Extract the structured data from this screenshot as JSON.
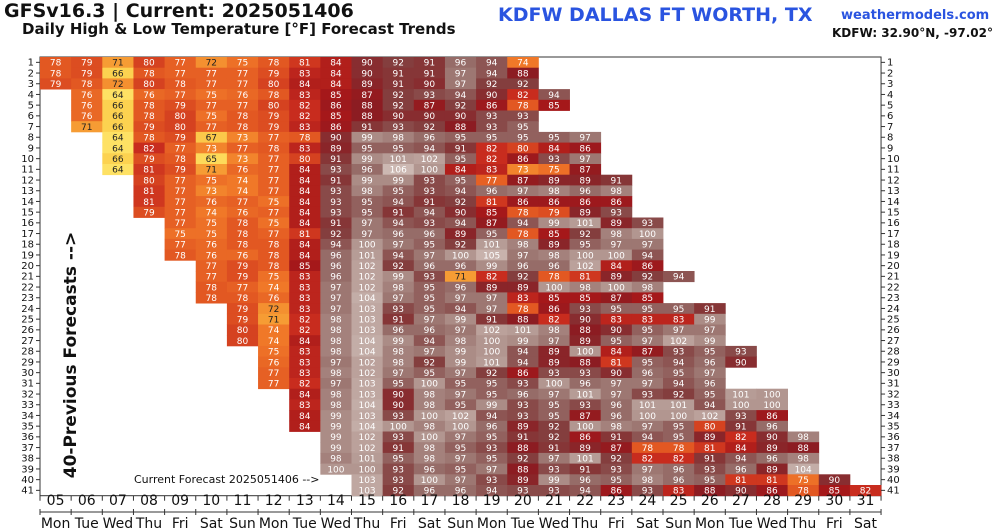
{
  "header": {
    "model_current": "GFSv16.3 | Current: 2025051406",
    "subtitle": "Daily High & Low Temperature [°F] Forecast Trends",
    "station": "KDFW DALLAS FT WORTH, TX",
    "site": "weathermodels.com",
    "coords": "KDFW: 32.90°N, -97.02°W"
  },
  "chart_data": {
    "type": "heatmap",
    "ylabel": "40-Previous Forecasts -->",
    "annotation": "Current Forecast 2025051406 -->",
    "row_labels": [
      1,
      2,
      3,
      4,
      5,
      6,
      7,
      8,
      9,
      10,
      11,
      12,
      13,
      14,
      15,
      16,
      17,
      18,
      19,
      20,
      21,
      22,
      23,
      24,
      25,
      26,
      27,
      28,
      29,
      30,
      31,
      32,
      33,
      34,
      35,
      36,
      37,
      38,
      39,
      40,
      41
    ],
    "day_numbers": [
      "05",
      "06",
      "07",
      "08",
      "09",
      "10",
      "11",
      "12",
      "13",
      "14",
      "15",
      "16",
      "17",
      "18",
      "19",
      "20",
      "21",
      "22",
      "23",
      "24",
      "25",
      "26",
      "27",
      "28",
      "29",
      "30",
      "31"
    ],
    "weekdays": [
      "Mon",
      "Tue",
      "Wed",
      "Thu",
      "Fri",
      "Sat",
      "Sun",
      "Mon",
      "Tue",
      "Wed",
      "Thu",
      "Fri",
      "Sat",
      "Sun",
      "Mon",
      "Tue",
      "Wed",
      "Thu",
      "Fri",
      "Sat",
      "Sun",
      "Mon",
      "Tue",
      "Wed",
      "Thu",
      "Fri",
      "Sat"
    ],
    "rows": [
      {
        "start": 0,
        "values": [
          78,
          79,
          71,
          80,
          77,
          72,
          75,
          78,
          81,
          84,
          90,
          92,
          91,
          96,
          94,
          74
        ]
      },
      {
        "start": 0,
        "values": [
          78,
          79,
          66,
          78,
          77,
          77,
          77,
          79,
          83,
          84,
          90,
          91,
          91,
          97,
          94,
          88
        ]
      },
      {
        "start": 0,
        "values": [
          79,
          78,
          72,
          80,
          78,
          77,
          77,
          80,
          84,
          84,
          89,
          91,
          90,
          97,
          92,
          92
        ]
      },
      {
        "start": 1,
        "values": [
          76,
          64,
          76,
          77,
          75,
          76,
          78,
          83,
          85,
          87,
          92,
          93,
          94,
          90,
          82,
          94
        ]
      },
      {
        "start": 1,
        "values": [
          76,
          66,
          78,
          79,
          77,
          77,
          80,
          82,
          86,
          88,
          92,
          87,
          92,
          86,
          78,
          85
        ]
      },
      {
        "start": 1,
        "values": [
          76,
          66,
          78,
          80,
          75,
          78,
          79,
          82,
          85,
          88,
          90,
          90,
          90,
          93,
          93
        ]
      },
      {
        "start": 1,
        "values": [
          71,
          66,
          79,
          80,
          77,
          78,
          79,
          83,
          86,
          91,
          93,
          92,
          88,
          93,
          95
        ]
      },
      {
        "start": 2,
        "values": [
          64,
          78,
          79,
          67,
          73,
          77,
          78,
          90,
          99,
          98,
          96,
          95,
          95,
          95,
          95,
          97
        ]
      },
      {
        "start": 2,
        "values": [
          64,
          82,
          77,
          73,
          77,
          78,
          83,
          89,
          95,
          95,
          94,
          91,
          82,
          80,
          84,
          86
        ]
      },
      {
        "start": 2,
        "values": [
          66,
          79,
          78,
          65,
          73,
          77,
          80,
          91,
          99,
          101,
          102,
          95,
          82,
          86,
          93,
          97
        ]
      },
      {
        "start": 2,
        "values": [
          64,
          81,
          79,
          71,
          76,
          77,
          84,
          93,
          96,
          106,
          100,
          84,
          83,
          73,
          75,
          87
        ]
      },
      {
        "start": 3,
        "values": [
          80,
          77,
          75,
          74,
          77,
          84,
          91,
          99,
          99,
          93,
          95,
          77,
          87,
          89,
          89,
          91
        ]
      },
      {
        "start": 3,
        "values": [
          81,
          77,
          73,
          74,
          77,
          84,
          93,
          98,
          95,
          93,
          94,
          96,
          97,
          98,
          96,
          98
        ]
      },
      {
        "start": 3,
        "values": [
          81,
          77,
          76,
          77,
          75,
          84,
          93,
          95,
          94,
          91,
          92,
          81,
          86,
          86,
          86,
          86
        ]
      },
      {
        "start": 3,
        "values": [
          79,
          77,
          74,
          76,
          77,
          84,
          93,
          95,
          91,
          94,
          90,
          85,
          78,
          79,
          89,
          93
        ]
      },
      {
        "start": 4,
        "values": [
          77,
          75,
          78,
          75,
          84,
          91,
          97,
          94,
          93,
          94,
          87,
          94,
          99,
          101,
          89,
          93
        ]
      },
      {
        "start": 4,
        "values": [
          75,
          75,
          78,
          77,
          81,
          92,
          97,
          96,
          96,
          89,
          95,
          78,
          85,
          92,
          98,
          100
        ]
      },
      {
        "start": 4,
        "values": [
          77,
          76,
          78,
          78,
          84,
          94,
          100,
          97,
          95,
          92,
          101,
          98,
          89,
          95,
          97,
          97
        ]
      },
      {
        "start": 4,
        "values": [
          78,
          76,
          76,
          78,
          84,
          96,
          101,
          94,
          97,
          100,
          105,
          97,
          98,
          100,
          100,
          94
        ]
      },
      {
        "start": 5,
        "values": [
          77,
          79,
          78,
          85,
          96,
          102,
          92,
          96,
          96,
          99,
          96,
          96,
          102,
          84,
          86
        ]
      },
      {
        "start": 5,
        "values": [
          77,
          79,
          75,
          83,
          96,
          102,
          99,
          93,
          71,
          82,
          92,
          78,
          81,
          89,
          92,
          94
        ]
      },
      {
        "start": 5,
        "values": [
          78,
          77,
          74,
          83,
          97,
          102,
          98,
          95,
          96,
          89,
          89,
          100,
          98,
          100,
          98
        ]
      },
      {
        "start": 5,
        "values": [
          78,
          78,
          76,
          83,
          97,
          104,
          97,
          95,
          97,
          97,
          83,
          85,
          85,
          87,
          85
        ]
      },
      {
        "start": 6,
        "values": [
          79,
          72,
          83,
          97,
          103,
          93,
          95,
          94,
          97,
          78,
          86,
          93,
          95,
          95,
          95,
          91
        ]
      },
      {
        "start": 6,
        "values": [
          79,
          71,
          82,
          98,
          103,
          91,
          97,
          99,
          91,
          88,
          82,
          90,
          83,
          83,
          83,
          99
        ]
      },
      {
        "start": 6,
        "values": [
          80,
          74,
          82,
          98,
          103,
          96,
          96,
          97,
          102,
          101,
          98,
          88,
          90,
          95,
          97,
          97
        ]
      },
      {
        "start": 6,
        "values": [
          80,
          74,
          84,
          98,
          104,
          99,
          94,
          98,
          100,
          99,
          97,
          89,
          95,
          97,
          102,
          99
        ]
      },
      {
        "start": 7,
        "values": [
          75,
          83,
          98,
          104,
          98,
          97,
          99,
          100,
          94,
          89,
          100,
          84,
          87,
          93,
          95,
          93
        ]
      },
      {
        "start": 7,
        "values": [
          76,
          83,
          97,
          102,
          98,
          92,
          99,
          101,
          94,
          89,
          88,
          81,
          95,
          94,
          96,
          90
        ]
      },
      {
        "start": 7,
        "values": [
          77,
          83,
          98,
          102,
          97,
          95,
          97,
          92,
          86,
          93,
          93,
          90,
          96,
          95,
          97
        ]
      },
      {
        "start": 7,
        "values": [
          77,
          82,
          97,
          103,
          95,
          100,
          95,
          95,
          93,
          100,
          96,
          97,
          97,
          94,
          96
        ]
      },
      {
        "start": 8,
        "values": [
          84,
          98,
          103,
          90,
          98,
          97,
          95,
          96,
          97,
          101,
          97,
          93,
          92,
          95,
          101,
          100
        ]
      },
      {
        "start": 8,
        "values": [
          83,
          98,
          104,
          90,
          98,
          95,
          99,
          93,
          95,
          93,
          96,
          101,
          101,
          94,
          100,
          100
        ]
      },
      {
        "start": 8,
        "values": [
          84,
          99,
          103,
          93,
          100,
          102,
          94,
          93,
          95,
          87,
          96,
          100,
          100,
          102,
          93,
          86
        ]
      },
      {
        "start": 8,
        "values": [
          84,
          99,
          104,
          100,
          98,
          100,
          96,
          89,
          92,
          100,
          98,
          97,
          95,
          80,
          91,
          96
        ]
      },
      {
        "start": 9,
        "values": [
          99,
          102,
          93,
          100,
          97,
          95,
          91,
          92,
          86,
          91,
          94,
          95,
          89,
          82,
          90,
          98
        ]
      },
      {
        "start": 9,
        "values": [
          99,
          102,
          91,
          98,
          95,
          93,
          88,
          91,
          89,
          87,
          78,
          78,
          81,
          84,
          89,
          88
        ]
      },
      {
        "start": 9,
        "values": [
          98,
          101,
          95,
          98,
          97,
          95,
          92,
          97,
          101,
          92,
          82,
          82,
          91,
          94,
          96,
          98
        ]
      },
      {
        "start": 9,
        "values": [
          100,
          100,
          93,
          96,
          95,
          97,
          88,
          93,
          91,
          93,
          97,
          96,
          93,
          96,
          89,
          104
        ]
      },
      {
        "start": 10,
        "values": [
          103,
          93,
          100,
          97,
          93,
          89,
          99,
          96,
          95,
          98,
          96,
          95,
          81,
          81,
          75,
          90
        ]
      },
      {
        "start": 10,
        "values": [
          103,
          92,
          96,
          96,
          94,
          93,
          93,
          94,
          86,
          93,
          83,
          88,
          90,
          86,
          78,
          85,
          82
        ]
      }
    ],
    "color_scale": "orange (~64) to dark red (~85) to gray-brown (~100+)"
  }
}
